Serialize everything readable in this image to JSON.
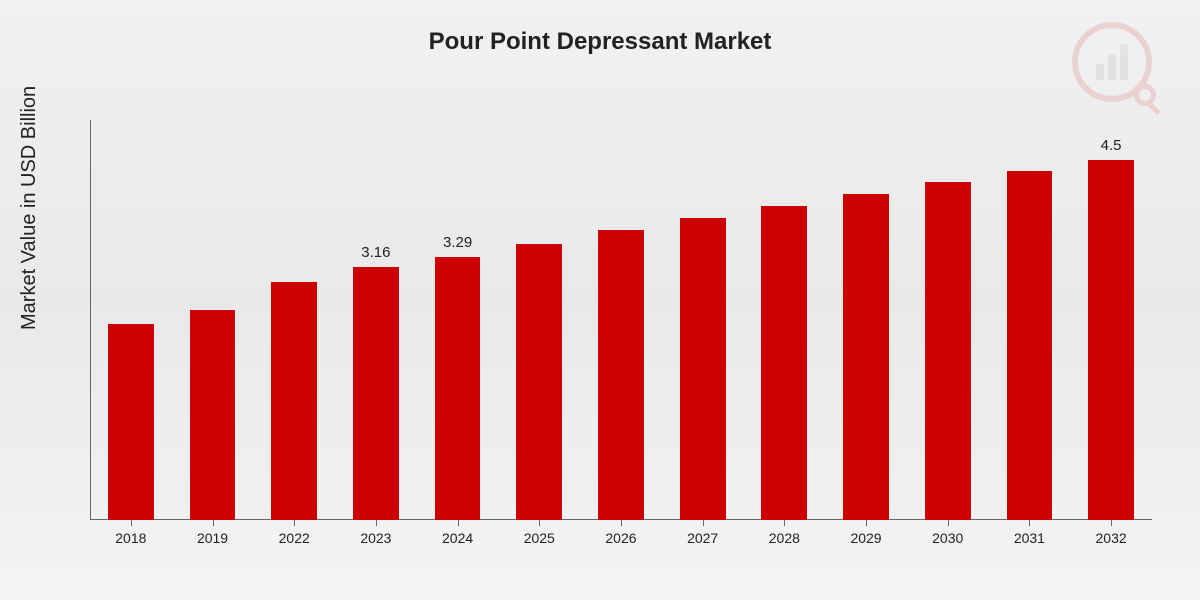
{
  "chart": {
    "type": "bar",
    "title": "Pour Point Depressant Market",
    "title_fontsize": 24,
    "title_color": "#222222",
    "ylabel": "Market Value in USD Billion",
    "ylabel_fontsize": 20,
    "background_gradient": [
      "#f1f1f2",
      "#e9e9ea",
      "#f4f4f4"
    ],
    "axis_color": "#666666",
    "label_color": "#222222",
    "label_fontsize": 14,
    "value_label_fontsize": 15,
    "bar_color": "#cc0000",
    "bar_width_ratio": 0.56,
    "ylim": [
      0,
      5.0
    ],
    "categories": [
      "2018",
      "2019",
      "2022",
      "2023",
      "2024",
      "2025",
      "2026",
      "2027",
      "2028",
      "2029",
      "2030",
      "2031",
      "2032"
    ],
    "values": [
      2.45,
      2.62,
      2.98,
      3.16,
      3.29,
      3.45,
      3.62,
      3.78,
      3.92,
      4.07,
      4.22,
      4.36,
      4.5
    ],
    "value_labels": {
      "3": "3.16",
      "4": "3.29",
      "12": "4.5"
    },
    "logo": {
      "opacity": 0.12,
      "ring_color": "#cc0000",
      "bar_color": "#888888"
    }
  }
}
